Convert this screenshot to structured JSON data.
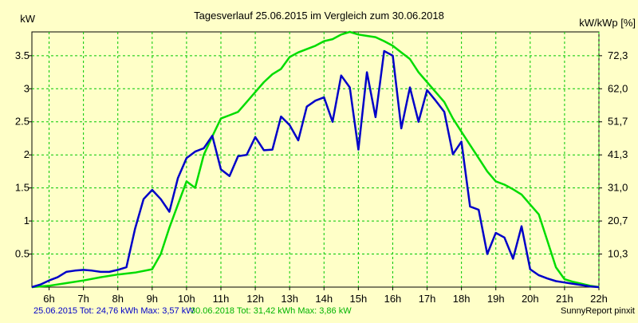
{
  "chart_data": {
    "type": "line",
    "title": "Tagesverlauf 25.06.2015 im Vergleich zum 30.06.2018",
    "ylabel": "kW",
    "y2label": "kW/kWp [%]",
    "xlim": [
      5.5,
      22
    ],
    "ylim": [
      0,
      3.86
    ],
    "grid": true,
    "x_ticks": [
      {
        "value": 6,
        "label": "6h"
      },
      {
        "value": 7,
        "label": "7h"
      },
      {
        "value": 8,
        "label": "8h"
      },
      {
        "value": 9,
        "label": "9h"
      },
      {
        "value": 10,
        "label": "10h"
      },
      {
        "value": 11,
        "label": "11h"
      },
      {
        "value": 12,
        "label": "12h"
      },
      {
        "value": 13,
        "label": "13h"
      },
      {
        "value": 14,
        "label": "14h"
      },
      {
        "value": 15,
        "label": "15h"
      },
      {
        "value": 16,
        "label": "16h"
      },
      {
        "value": 17,
        "label": "17h"
      },
      {
        "value": 18,
        "label": "18h"
      },
      {
        "value": 19,
        "label": "19h"
      },
      {
        "value": 20,
        "label": "20h"
      },
      {
        "value": 21,
        "label": "21h"
      },
      {
        "value": 22,
        "label": "22h"
      }
    ],
    "y_ticks": [
      {
        "value": 0.5,
        "label": "0.5"
      },
      {
        "value": 1,
        "label": "1"
      },
      {
        "value": 1.5,
        "label": "1.5"
      },
      {
        "value": 2,
        "label": "2"
      },
      {
        "value": 2.5,
        "label": "2.5"
      },
      {
        "value": 3,
        "label": "3"
      },
      {
        "value": 3.5,
        "label": "3.5"
      }
    ],
    "y2_ticks": [
      {
        "value": 0.5,
        "label": "10,3"
      },
      {
        "value": 1,
        "label": "20,7"
      },
      {
        "value": 1.5,
        "label": "31,0"
      },
      {
        "value": 2,
        "label": "41,3"
      },
      {
        "value": 2.5,
        "label": "51,7"
      },
      {
        "value": 3,
        "label": "62,0"
      },
      {
        "value": 3.5,
        "label": "72,3"
      }
    ],
    "series": [
      {
        "name": "25.06.2015",
        "color": "#0000c8",
        "points": [
          [
            5.5,
            0.0
          ],
          [
            5.75,
            0.04
          ],
          [
            6.0,
            0.1
          ],
          [
            6.25,
            0.15
          ],
          [
            6.5,
            0.23
          ],
          [
            6.75,
            0.25
          ],
          [
            7.0,
            0.26
          ],
          [
            7.25,
            0.25
          ],
          [
            7.5,
            0.23
          ],
          [
            7.75,
            0.23
          ],
          [
            8.0,
            0.26
          ],
          [
            8.25,
            0.3
          ],
          [
            8.5,
            0.88
          ],
          [
            8.75,
            1.33
          ],
          [
            9.0,
            1.47
          ],
          [
            9.25,
            1.33
          ],
          [
            9.5,
            1.14
          ],
          [
            9.75,
            1.65
          ],
          [
            10.0,
            1.95
          ],
          [
            10.25,
            2.05
          ],
          [
            10.5,
            2.1
          ],
          [
            10.75,
            2.29
          ],
          [
            11.0,
            1.78
          ],
          [
            11.25,
            1.68
          ],
          [
            11.5,
            1.98
          ],
          [
            11.75,
            2.0
          ],
          [
            12.0,
            2.27
          ],
          [
            12.25,
            2.07
          ],
          [
            12.5,
            2.08
          ],
          [
            12.75,
            2.58
          ],
          [
            13.0,
            2.45
          ],
          [
            13.25,
            2.22
          ],
          [
            13.5,
            2.73
          ],
          [
            13.75,
            2.82
          ],
          [
            14.0,
            2.87
          ],
          [
            14.25,
            2.5
          ],
          [
            14.5,
            3.2
          ],
          [
            14.75,
            3.02
          ],
          [
            15.0,
            2.08
          ],
          [
            15.25,
            3.25
          ],
          [
            15.5,
            2.57
          ],
          [
            15.75,
            3.57
          ],
          [
            16.0,
            3.5
          ],
          [
            16.25,
            2.4
          ],
          [
            16.5,
            3.02
          ],
          [
            16.75,
            2.5
          ],
          [
            17.0,
            2.98
          ],
          [
            17.25,
            2.82
          ],
          [
            17.5,
            2.65
          ],
          [
            17.75,
            2.01
          ],
          [
            18.0,
            2.2
          ],
          [
            18.25,
            1.22
          ],
          [
            18.5,
            1.17
          ],
          [
            18.75,
            0.5
          ],
          [
            19.0,
            0.82
          ],
          [
            19.25,
            0.75
          ],
          [
            19.5,
            0.43
          ],
          [
            19.75,
            0.92
          ],
          [
            20.0,
            0.27
          ],
          [
            20.25,
            0.18
          ],
          [
            20.5,
            0.13
          ],
          [
            20.75,
            0.09
          ],
          [
            21.0,
            0.07
          ],
          [
            21.25,
            0.05
          ],
          [
            21.5,
            0.03
          ],
          [
            21.75,
            0.01
          ],
          [
            22.0,
            0.0
          ]
        ]
      },
      {
        "name": "30.06.2018",
        "color": "#00dc00",
        "points": [
          [
            5.5,
            0.0
          ],
          [
            6.0,
            0.02
          ],
          [
            6.5,
            0.06
          ],
          [
            7.0,
            0.1
          ],
          [
            7.5,
            0.15
          ],
          [
            8.0,
            0.19
          ],
          [
            8.5,
            0.22
          ],
          [
            9.0,
            0.27
          ],
          [
            9.25,
            0.5
          ],
          [
            9.5,
            0.9
          ],
          [
            9.75,
            1.25
          ],
          [
            10.0,
            1.6
          ],
          [
            10.25,
            1.5
          ],
          [
            10.5,
            2.0
          ],
          [
            10.75,
            2.28
          ],
          [
            11.0,
            2.55
          ],
          [
            11.25,
            2.6
          ],
          [
            11.5,
            2.65
          ],
          [
            11.75,
            2.8
          ],
          [
            12.0,
            2.95
          ],
          [
            12.25,
            3.1
          ],
          [
            12.5,
            3.22
          ],
          [
            12.75,
            3.3
          ],
          [
            13.0,
            3.48
          ],
          [
            13.25,
            3.55
          ],
          [
            13.5,
            3.6
          ],
          [
            13.75,
            3.65
          ],
          [
            14.0,
            3.72
          ],
          [
            14.25,
            3.75
          ],
          [
            14.5,
            3.82
          ],
          [
            14.75,
            3.86
          ],
          [
            15.0,
            3.82
          ],
          [
            15.25,
            3.8
          ],
          [
            15.5,
            3.78
          ],
          [
            15.75,
            3.72
          ],
          [
            16.0,
            3.65
          ],
          [
            16.25,
            3.55
          ],
          [
            16.5,
            3.45
          ],
          [
            16.75,
            3.25
          ],
          [
            17.0,
            3.1
          ],
          [
            17.25,
            2.95
          ],
          [
            17.5,
            2.8
          ],
          [
            17.75,
            2.55
          ],
          [
            18.0,
            2.35
          ],
          [
            18.25,
            2.15
          ],
          [
            18.5,
            1.95
          ],
          [
            18.75,
            1.75
          ],
          [
            19.0,
            1.6
          ],
          [
            19.25,
            1.55
          ],
          [
            19.5,
            1.48
          ],
          [
            19.75,
            1.4
          ],
          [
            20.0,
            1.25
          ],
          [
            20.25,
            1.1
          ],
          [
            20.5,
            0.7
          ],
          [
            20.75,
            0.3
          ],
          [
            21.0,
            0.12
          ],
          [
            21.25,
            0.08
          ],
          [
            21.5,
            0.05
          ],
          [
            21.75,
            0.02
          ],
          [
            22.0,
            0.0
          ]
        ]
      }
    ],
    "footer": {
      "series1_summary": "25.06.2015 Tot: 24,76 kWh Max: 3,57 kW",
      "series2_summary": "30.06.2018 Tot: 31,42 kWh Max: 3,86 kW",
      "credit": "SunnyReport pinxit"
    }
  }
}
